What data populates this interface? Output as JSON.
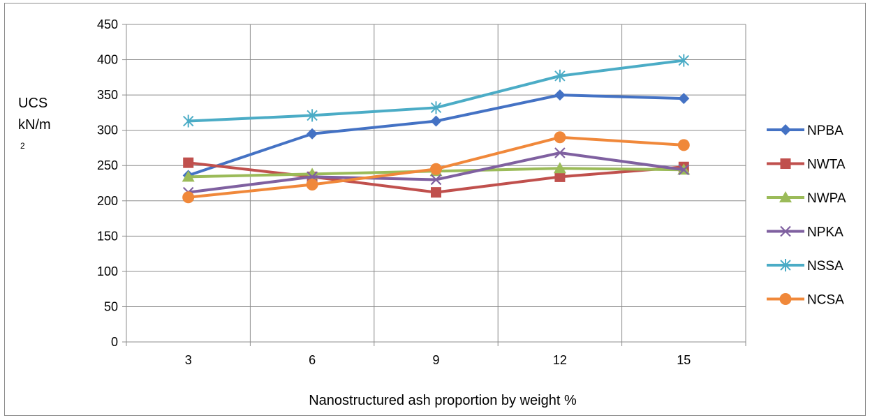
{
  "chart_data": {
    "type": "line",
    "title": "",
    "xlabel": "Nanostructured ash proportion by weight %",
    "ylabel_lines": [
      "UCS",
      "kN/m",
      "2"
    ],
    "categories": [
      "3",
      "6",
      "9",
      "12",
      "15"
    ],
    "ylim": [
      0,
      450
    ],
    "yticks": [
      "0",
      "50",
      "100",
      "150",
      "200",
      "250",
      "300",
      "350",
      "400",
      "450"
    ],
    "grid": true,
    "legend_position": "right",
    "series": [
      {
        "name": "NPBA",
        "color": "#4472C4",
        "marker": "diamond",
        "values": [
          236,
          295,
          313,
          350,
          345
        ]
      },
      {
        "name": "NWTA",
        "color": "#C0504D",
        "marker": "square",
        "values": [
          254,
          234,
          212,
          234,
          248
        ]
      },
      {
        "name": "NWPA",
        "color": "#9BBB59",
        "marker": "triangle",
        "values": [
          234,
          238,
          242,
          246,
          244
        ]
      },
      {
        "name": "NPKA",
        "color": "#7F60A0",
        "marker": "x",
        "values": [
          212,
          234,
          230,
          268,
          244
        ]
      },
      {
        "name": "NSSA",
        "color": "#4BACC6",
        "marker": "star",
        "values": [
          313,
          321,
          332,
          377,
          399
        ]
      },
      {
        "name": "NCSA",
        "color": "#F0883A",
        "marker": "circle",
        "values": [
          205,
          223,
          245,
          290,
          279
        ]
      }
    ]
  }
}
